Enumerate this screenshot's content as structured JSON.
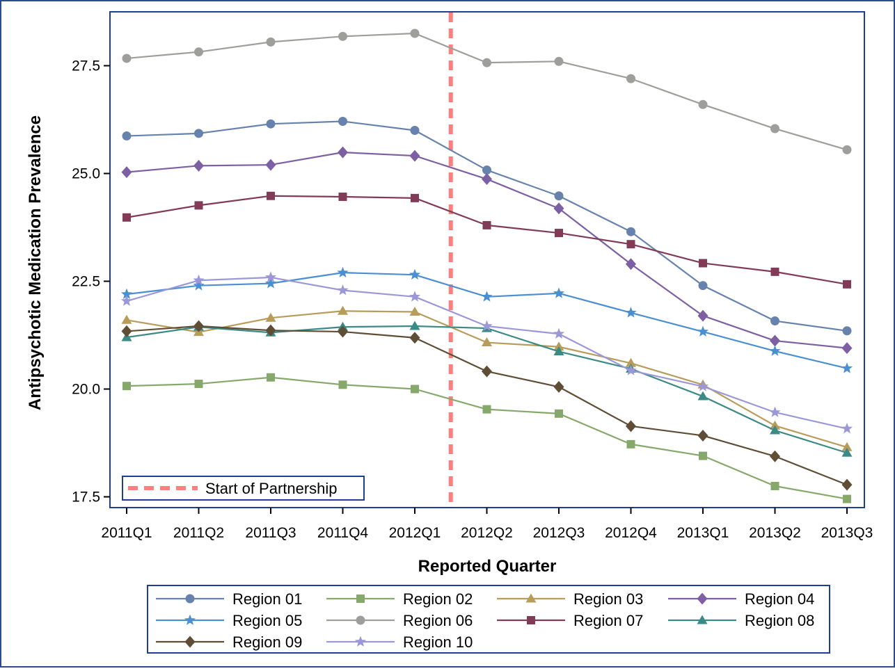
{
  "chart_data": {
    "type": "line",
    "xlabel": "Reported Quarter",
    "ylabel": "Antipsychotic Medication Prevalence",
    "categories": [
      "2011Q1",
      "2011Q2",
      "2011Q3",
      "2011Q4",
      "2012Q1",
      "2012Q2",
      "2012Q3",
      "2012Q4",
      "2013Q1",
      "2013Q2",
      "2013Q3"
    ],
    "y_ticks": [
      "17.5",
      "20.0",
      "22.5",
      "25.0",
      "27.5"
    ],
    "ylim": [
      17.25,
      28.75
    ],
    "grid": false,
    "reference_line": {
      "label": "Start of Partnership",
      "x_between": [
        "2012Q1",
        "2012Q2"
      ],
      "color": "#ff7f7f",
      "style": "dashed"
    },
    "reference_legend_placement": "bottom-left inside plot",
    "legend_placement": "bottom, outside plot",
    "series": [
      {
        "name": "Region 01",
        "color": "#6682ad",
        "marker": "circle",
        "values": [
          25.87,
          25.93,
          26.15,
          26.21,
          26.0,
          25.08,
          24.48,
          23.65,
          22.4,
          21.58,
          21.35
        ]
      },
      {
        "name": "Region 02",
        "color": "#86a86a",
        "marker": "square",
        "values": [
          20.07,
          20.12,
          20.27,
          20.1,
          20.0,
          19.53,
          19.43,
          18.72,
          18.45,
          17.75,
          17.45
        ]
      },
      {
        "name": "Region 03",
        "color": "#b79c5a",
        "marker": "triangle",
        "values": [
          21.6,
          21.32,
          21.65,
          21.81,
          21.79,
          21.08,
          20.98,
          20.6,
          20.1,
          19.15,
          18.65
        ]
      },
      {
        "name": "Region 04",
        "color": "#7d5fa3",
        "marker": "diamond",
        "values": [
          25.03,
          25.18,
          25.2,
          25.49,
          25.41,
          24.87,
          24.19,
          22.9,
          21.7,
          21.12,
          20.95
        ]
      },
      {
        "name": "Region 05",
        "color": "#4a8fd1",
        "marker": "star",
        "values": [
          22.2,
          22.4,
          22.45,
          22.7,
          22.65,
          22.14,
          22.22,
          21.77,
          21.33,
          20.88,
          20.48
        ]
      },
      {
        "name": "Region 06",
        "color": "#9e9e9a",
        "marker": "circle",
        "values": [
          27.67,
          27.82,
          28.05,
          28.18,
          28.25,
          27.57,
          27.6,
          27.2,
          26.6,
          26.04,
          25.55
        ]
      },
      {
        "name": "Region 07",
        "color": "#813b56",
        "marker": "square",
        "values": [
          23.98,
          24.26,
          24.48,
          24.46,
          24.43,
          23.8,
          23.62,
          23.36,
          22.92,
          22.72,
          22.43
        ]
      },
      {
        "name": "Region 08",
        "color": "#3c8a86",
        "marker": "triangle",
        "values": [
          21.2,
          21.44,
          21.31,
          21.44,
          21.46,
          21.41,
          20.87,
          20.47,
          19.83,
          19.04,
          18.52
        ]
      },
      {
        "name": "Region 09",
        "color": "#5f4d36",
        "marker": "diamond",
        "values": [
          21.34,
          21.46,
          21.36,
          21.33,
          21.19,
          20.41,
          20.05,
          19.14,
          18.92,
          18.44,
          17.78
        ]
      },
      {
        "name": "Region 10",
        "color": "#9b98d8",
        "marker": "star",
        "values": [
          22.04,
          22.52,
          22.59,
          22.29,
          22.14,
          21.46,
          21.28,
          20.43,
          20.06,
          19.46,
          19.08
        ]
      }
    ]
  }
}
